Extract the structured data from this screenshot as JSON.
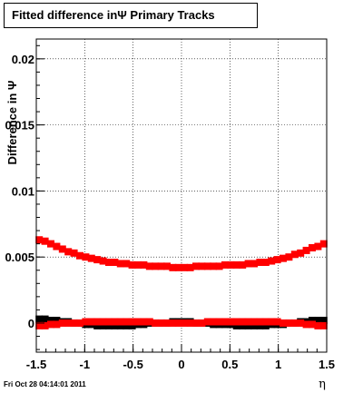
{
  "title": "Fitted difference inΨ   Primary Tracks",
  "footer": "Fri Oct 28 04:14:01 2011",
  "chart_data": {
    "type": "scatter",
    "xlabel": "η",
    "ylabel": "Difference in Ψ",
    "xlim": [
      -1.5,
      1.5
    ],
    "ylim": [
      -0.0022,
      0.0215
    ],
    "grid": true,
    "x_ticks": [
      -1.5,
      -1,
      -0.5,
      0,
      0.5,
      1,
      1.5
    ],
    "x_tick_labels": [
      "-1.5",
      "-1",
      "-0.5",
      "0",
      "0.5",
      "1",
      "1.5"
    ],
    "y_ticks": [
      0,
      0.005,
      0.01,
      0.015,
      0.02
    ],
    "y_tick_labels": [
      "0",
      "0.005",
      "0.01",
      "0.015",
      "0.02"
    ],
    "series": [
      {
        "color": "#ff0000",
        "marker": "square",
        "x": [
          -1.47,
          -1.41,
          -1.35,
          -1.29,
          -1.23,
          -1.17,
          -1.11,
          -1.05,
          -0.99,
          -0.93,
          -0.87,
          -0.81,
          -0.75,
          -0.69,
          -0.63,
          -0.57,
          -0.51,
          -0.45,
          -0.39,
          -0.33,
          -0.27,
          -0.21,
          -0.15,
          -0.09,
          -0.03,
          0.03,
          0.09,
          0.15,
          0.21,
          0.27,
          0.33,
          0.39,
          0.45,
          0.51,
          0.57,
          0.63,
          0.69,
          0.75,
          0.81,
          0.87,
          0.93,
          0.99,
          1.05,
          1.11,
          1.17,
          1.23,
          1.29,
          1.35,
          1.41,
          1.47
        ],
        "y": [
          0.0063,
          0.0062,
          0.006,
          0.0058,
          0.0056,
          0.0054,
          0.0053,
          0.0051,
          0.005,
          0.0049,
          0.0048,
          0.0047,
          0.0046,
          0.0046,
          0.0045,
          0.0045,
          0.0044,
          0.0044,
          0.0044,
          0.0043,
          0.0043,
          0.0043,
          0.0043,
          0.0042,
          0.0042,
          0.0042,
          0.0042,
          0.0043,
          0.0043,
          0.0043,
          0.0043,
          0.0043,
          0.0044,
          0.0044,
          0.0044,
          0.0044,
          0.0045,
          0.0045,
          0.0046,
          0.0046,
          0.0047,
          0.0048,
          0.0049,
          0.005,
          0.0052,
          0.0053,
          0.0055,
          0.0057,
          0.0058,
          0.006
        ]
      },
      {
        "color": "#000000",
        "marker": "square",
        "x": [
          -1.47,
          -1.41,
          -1.35,
          -1.29,
          -1.23,
          -1.17,
          -1.11,
          -1.05,
          -0.99,
          -0.93,
          -0.87,
          -0.81,
          -0.75,
          -0.69,
          -0.63,
          -0.57,
          -0.51,
          -0.45,
          -0.39,
          -0.33,
          -0.27,
          -0.21,
          -0.15,
          -0.09,
          -0.03,
          0.03,
          0.09,
          0.15,
          0.21,
          0.27,
          0.33,
          0.39,
          0.45,
          0.51,
          0.57,
          0.63,
          0.69,
          0.75,
          0.81,
          0.87,
          0.93,
          0.99,
          1.05,
          1.11,
          1.17,
          1.23,
          1.29,
          1.35,
          1.41,
          1.47
        ],
        "y": [
          0.0003,
          0.0003,
          0.0002,
          0.0002,
          0.0001,
          0.0001,
          0.0,
          0.0,
          -0.0001,
          -0.0001,
          -0.0002,
          -0.0002,
          -0.0002,
          -0.0002,
          -0.0002,
          -0.0002,
          -0.0002,
          -0.0001,
          -0.0001,
          0.0,
          0.0,
          0.0,
          0.0,
          0.0001,
          0.0001,
          0.0001,
          0.0001,
          0.0,
          0.0,
          0.0,
          -0.0001,
          -0.0001,
          -0.0001,
          -0.0001,
          -0.0002,
          -0.0002,
          -0.0002,
          -0.0002,
          -0.0002,
          -0.0002,
          -0.0001,
          -0.0001,
          -0.0001,
          0.0,
          0.0,
          0.0001,
          0.0001,
          0.0002,
          0.0002,
          0.0002
        ]
      },
      {
        "color": "#ff0000",
        "marker": "square",
        "x": [
          -1.47,
          -1.41,
          -1.35,
          -1.29,
          -1.23,
          -1.17,
          -1.11,
          -1.05,
          -0.99,
          -0.93,
          -0.87,
          -0.81,
          -0.75,
          -0.69,
          -0.63,
          -0.57,
          -0.51,
          -0.45,
          -0.39,
          -0.33,
          -0.27,
          -0.21,
          -0.15,
          -0.09,
          -0.03,
          0.03,
          0.09,
          0.15,
          0.21,
          0.27,
          0.33,
          0.39,
          0.45,
          0.51,
          0.57,
          0.63,
          0.69,
          0.75,
          0.81,
          0.87,
          0.93,
          0.99,
          1.05,
          1.11,
          1.17,
          1.23,
          1.29,
          1.35,
          1.41,
          1.47
        ],
        "y": [
          -0.0002,
          -0.0002,
          -0.0001,
          -0.0001,
          0.0,
          0.0,
          0.0,
          0.0,
          0.0001,
          0.0001,
          0.0001,
          0.0001,
          0.0001,
          0.0001,
          0.0001,
          0.0001,
          0.0001,
          0.0001,
          0.0001,
          0.0001,
          0.0,
          0.0,
          0.0,
          0.0,
          0.0,
          0.0,
          0.0,
          0.0,
          0.0,
          0.0001,
          0.0001,
          0.0001,
          0.0001,
          0.0001,
          0.0001,
          0.0001,
          0.0001,
          0.0001,
          0.0001,
          0.0001,
          0.0001,
          0.0001,
          0.0,
          0.0,
          0.0,
          0.0,
          -0.0001,
          -0.0001,
          -0.0002,
          -0.0002
        ]
      }
    ]
  }
}
